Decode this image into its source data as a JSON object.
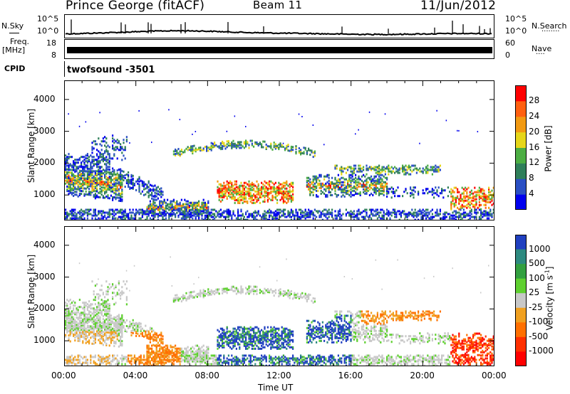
{
  "header": {
    "station": "Prince George (fitACF)",
    "beam": "Beam 11",
    "date": "11/Jun/2012"
  },
  "nsky_panel": {
    "label": "N.Sky",
    "ytick_top": "10^5",
    "ytick_bottom": "10^0",
    "right_ytick_top": "10^5",
    "right_ytick_bottom": "10^0",
    "right_label": "N.Search",
    "right_marker": "........"
  },
  "freq_panel": {
    "label_line1": "Freq.",
    "label_line2": "[MHz]",
    "ytick_top": "18",
    "ytick_bottom": "8",
    "right_ytick_top": "60",
    "right_ytick_bottom": "0",
    "right_label": "Nave",
    "right_marker": "...."
  },
  "cpid_panel": {
    "label": "CPID",
    "mode": "twofsound  -3501"
  },
  "colors": {
    "power": [
      "#0000ee",
      "#2a4fc4",
      "#2f7f5a",
      "#4cae43",
      "#e6d619",
      "#f29a12",
      "#ff6010",
      "#ff0000"
    ],
    "velocity": [
      "#2040c0",
      "#2d8a80",
      "#33a040",
      "#5fd030",
      "#c8c8c8",
      "#f0a020",
      "#ff7000",
      "#ff3000",
      "#ff0000"
    ]
  },
  "chart_data": [
    {
      "type": "heatmap",
      "title": "",
      "ylabel": "Slant Range [km]",
      "ylim": [
        200,
        4600
      ],
      "yticks": [
        "1000",
        "2000",
        "3000",
        "4000"
      ],
      "colorbar": {
        "label": "Power [dB]",
        "tick_labels": [
          "4",
          "8",
          "12",
          "16",
          "20",
          "24",
          "28"
        ],
        "range": [
          0,
          32
        ]
      }
    },
    {
      "type": "heatmap",
      "title": "",
      "xlabel": "Time UT",
      "ylabel": "Slant Range [km]",
      "ylim": [
        200,
        4600
      ],
      "yticks": [
        "1000",
        "2000",
        "3000",
        "4000"
      ],
      "xticks": [
        "00:00",
        "04:00",
        "08:00",
        "12:00",
        "16:00",
        "20:00",
        "00:00"
      ],
      "colorbar": {
        "label": "Velocity [m s",
        "label_sup": "-1",
        "label_end": "]",
        "tick_labels": [
          "1000",
          "500",
          "100",
          "25",
          "-25",
          "-100",
          "-500",
          "-1000"
        ]
      }
    }
  ]
}
